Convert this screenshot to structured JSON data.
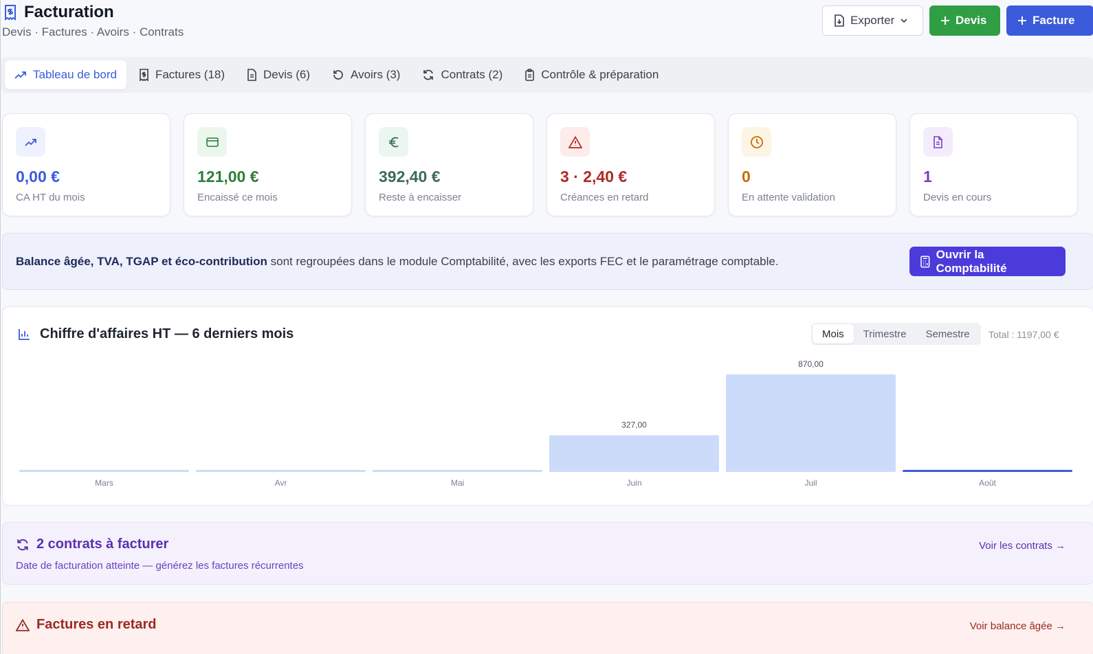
{
  "header": {
    "title": "Facturation",
    "subtitle": "Devis · Factures · Avoirs · Contrats",
    "export_label": "Exporter",
    "devis_label": "Devis",
    "facture_label": "Facture"
  },
  "tabs": [
    {
      "label": "Tableau de bord",
      "icon": "trend-icon",
      "active": true
    },
    {
      "label": "Factures (18)",
      "icon": "invoice-icon"
    },
    {
      "label": "Devis (6)",
      "icon": "file-icon"
    },
    {
      "label": "Avoirs (3)",
      "icon": "undo-icon"
    },
    {
      "label": "Contrats (2)",
      "icon": "refresh-icon"
    },
    {
      "label": "Contrôle & préparation",
      "icon": "clipboard-icon"
    }
  ],
  "kpis": [
    {
      "value": "0,00 €",
      "label": "CA HT du mois",
      "icon": "trend-icon",
      "color": "#3b5bdb",
      "bg": "#eef2ff"
    },
    {
      "value": "121,00 €",
      "label": "Encaissé ce mois",
      "icon": "card-icon",
      "color": "#2f7d3a",
      "bg": "#ebf7ec"
    },
    {
      "value": "392,40 €",
      "label": "Reste à encaisser",
      "icon": "euro-icon",
      "color": "#3d6b5a",
      "bg": "#eaf6ef"
    },
    {
      "value": "3 · 2,40 €",
      "label": "Créances en retard",
      "icon": "alert-icon",
      "color": "#b02a24",
      "bg": "#fdecea"
    },
    {
      "value": "0",
      "label": "En attente validation",
      "icon": "clock-icon",
      "color": "#c76a0a",
      "bg": "#fdf5e4"
    },
    {
      "value": "1",
      "label": "Devis en cours",
      "icon": "doc-icon",
      "color": "#7a3fc0",
      "bg": "#f3ecfc"
    }
  ],
  "banner": {
    "bold": "Balance âgée, TVA, TGAP et éco-contribution",
    "text": " sont regroupées dans le module Comptabilité, avec les exports FEC et le paramétrage comptable.",
    "button": "Ouvrir la Comptabilité"
  },
  "chart": {
    "title": "Chiffre d'affaires HT — 6 derniers mois",
    "segments": [
      "Mois",
      "Trimestre",
      "Semestre"
    ],
    "active_segment": "Mois",
    "total": "Total : 1197,00 €"
  },
  "chart_data": {
    "type": "bar",
    "categories": [
      "Mars",
      "Avr",
      "Mai",
      "Juin",
      "Juil",
      "Août"
    ],
    "values": [
      0,
      0,
      0,
      327,
      870,
      0
    ],
    "value_labels": [
      "",
      "",
      "",
      "327,00",
      "870,00",
      ""
    ],
    "highlight_category": "Août",
    "bar_color": "#cddbfa",
    "highlight_color": "#3b5bdb",
    "grid": false
  },
  "contracts": {
    "title": "2 contrats à facturer",
    "subtitle": "Date de facturation atteinte — générez les factures récurrentes",
    "link": "Voir les contrats →"
  },
  "overdue": {
    "title": "Factures en retard",
    "link": "Voir balance âgée →"
  }
}
